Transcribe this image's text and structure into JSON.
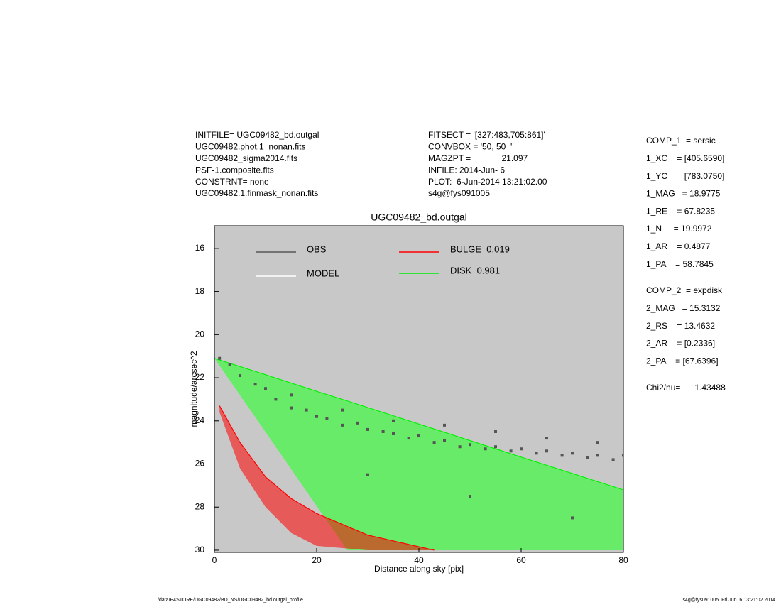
{
  "header": {
    "left": [
      "INITFILE= UGC09482_bd.outgal",
      "UGC09482.phot.1_nonan.fits",
      "UGC09482_sigma2014.fits",
      "PSF-1.composite.fits",
      "CONSTRNT= none",
      "UGC09482.1.finmask_nonan.fits"
    ],
    "middle": [
      "FITSECT = '[327:483,705:861]'",
      "CONVBOX = '50, 50  '",
      "MAGZPT =             21.097",
      "INFILE: 2014-Jun- 6",
      "PLOT:  6-Jun-2014 13:21:02.00",
      "s4g@fys091005"
    ]
  },
  "params": {
    "comp1": [
      "COMP_1  = sersic",
      "1_XC    = [405.6590]",
      "1_YC    = [783.0750]",
      "1_MAG   = 18.9775",
      "1_RE    = 67.8235",
      "1_N     = 19.9972",
      "1_AR    = 0.4877",
      "1_PA    = 58.7845"
    ],
    "comp2": [
      "COMP_2  = expdisk",
      "2_MAG   = 15.3132",
      "2_RS    = 13.4632",
      "2_AR    = [0.2336]",
      "2_PA    = [67.6396]"
    ],
    "chi": "Chi2/nu=      1.43488"
  },
  "footer": {
    "left": "/data/P4STORE/UGC09482/BD_NS/UGC09482_bd.outgal_profile",
    "right": "s4g@fys091005  Fri Jun  6 13:21:02 2014"
  },
  "chart_data": {
    "type": "scatter",
    "title": "UGC09482_bd.outgal",
    "x_label": "Distance along sky [pix]",
    "y_label": "magnitude/arcsec^2",
    "xlim": [
      0,
      80
    ],
    "ylim": [
      14.95,
      30.1
    ],
    "y_inverted": true,
    "xticks": [
      0,
      20,
      40,
      60,
      80
    ],
    "yticks": [
      16,
      18,
      20,
      22,
      24,
      26,
      28,
      30
    ],
    "background": "#c8c8c8",
    "series": [
      {
        "name": "OBS",
        "color": "#555555",
        "kind": "points",
        "x": [
          1,
          3,
          5,
          8,
          10,
          12,
          15,
          18,
          20,
          22,
          25,
          28,
          30,
          33,
          35,
          38,
          40,
          43,
          45,
          48,
          50,
          53,
          55,
          58,
          60,
          63,
          65,
          68,
          70,
          73,
          75,
          78,
          80,
          15,
          25,
          35,
          45,
          55,
          65,
          75,
          30,
          50,
          70
        ],
        "values": [
          21.1,
          21.4,
          21.9,
          22.3,
          22.5,
          23.0,
          23.4,
          23.5,
          23.8,
          23.9,
          24.2,
          24.1,
          24.4,
          24.5,
          24.6,
          24.8,
          24.7,
          25.0,
          24.9,
          25.2,
          25.1,
          25.3,
          25.2,
          25.4,
          25.3,
          25.5,
          25.4,
          25.6,
          25.5,
          25.7,
          25.6,
          25.8,
          25.6,
          22.8,
          23.5,
          24.0,
          24.2,
          24.5,
          24.8,
          25.0,
          26.5,
          27.5,
          28.5
        ]
      },
      {
        "name": "MODEL",
        "color": "#ffffff",
        "kind": "band",
        "x": [
          0,
          26,
          80
        ],
        "values": [
          21.1,
          23.1,
          27.2
        ],
        "lower": [
          21.1,
          30,
          30
        ]
      },
      {
        "name": "BULGE  0.019",
        "color": "#ff0000",
        "kind": "band",
        "x": [
          1,
          5,
          10,
          15,
          20,
          30,
          43
        ],
        "values": [
          23.3,
          25,
          26.6,
          27.6,
          28.3,
          29.3,
          30
        ],
        "lower": [
          23.6,
          26.2,
          28,
          29.2,
          29.8,
          30,
          30
        ]
      },
      {
        "name": "DISK  0.981",
        "color": "#00ee00",
        "kind": "band",
        "x": [
          0,
          10,
          20,
          26,
          40,
          60,
          80
        ],
        "values": [
          21.1,
          21.86,
          22.63,
          23.08,
          24.15,
          25.68,
          27.2
        ],
        "lower": [
          21.1,
          24.52,
          27.95,
          30,
          30,
          30,
          30
        ]
      }
    ]
  }
}
